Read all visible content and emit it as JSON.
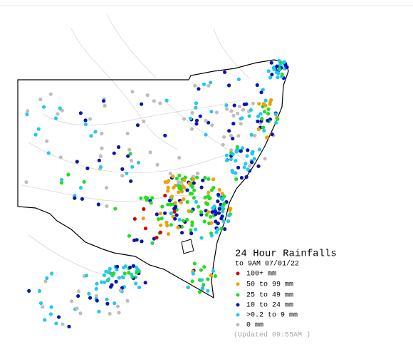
{
  "title": "24 Hour Rainfalls",
  "subtitle": "to 9AM 07/01/22",
  "legend": [
    {
      "label": "100+ mm",
      "color": "#d40000"
    },
    {
      "label": "50  to 99 mm",
      "color": "#f0a000"
    },
    {
      "label": "25  to 49 mm",
      "color": "#22dd22"
    },
    {
      "label": "10  to 24 mm",
      "color": "#0a14b4"
    },
    {
      "label": ">0.2 to 9 mm",
      "color": "#22c8ee"
    },
    {
      "label": "0 mm",
      "color": "#bdbdbd"
    }
  ],
  "updated": "(Updated 09:55AM  )"
}
